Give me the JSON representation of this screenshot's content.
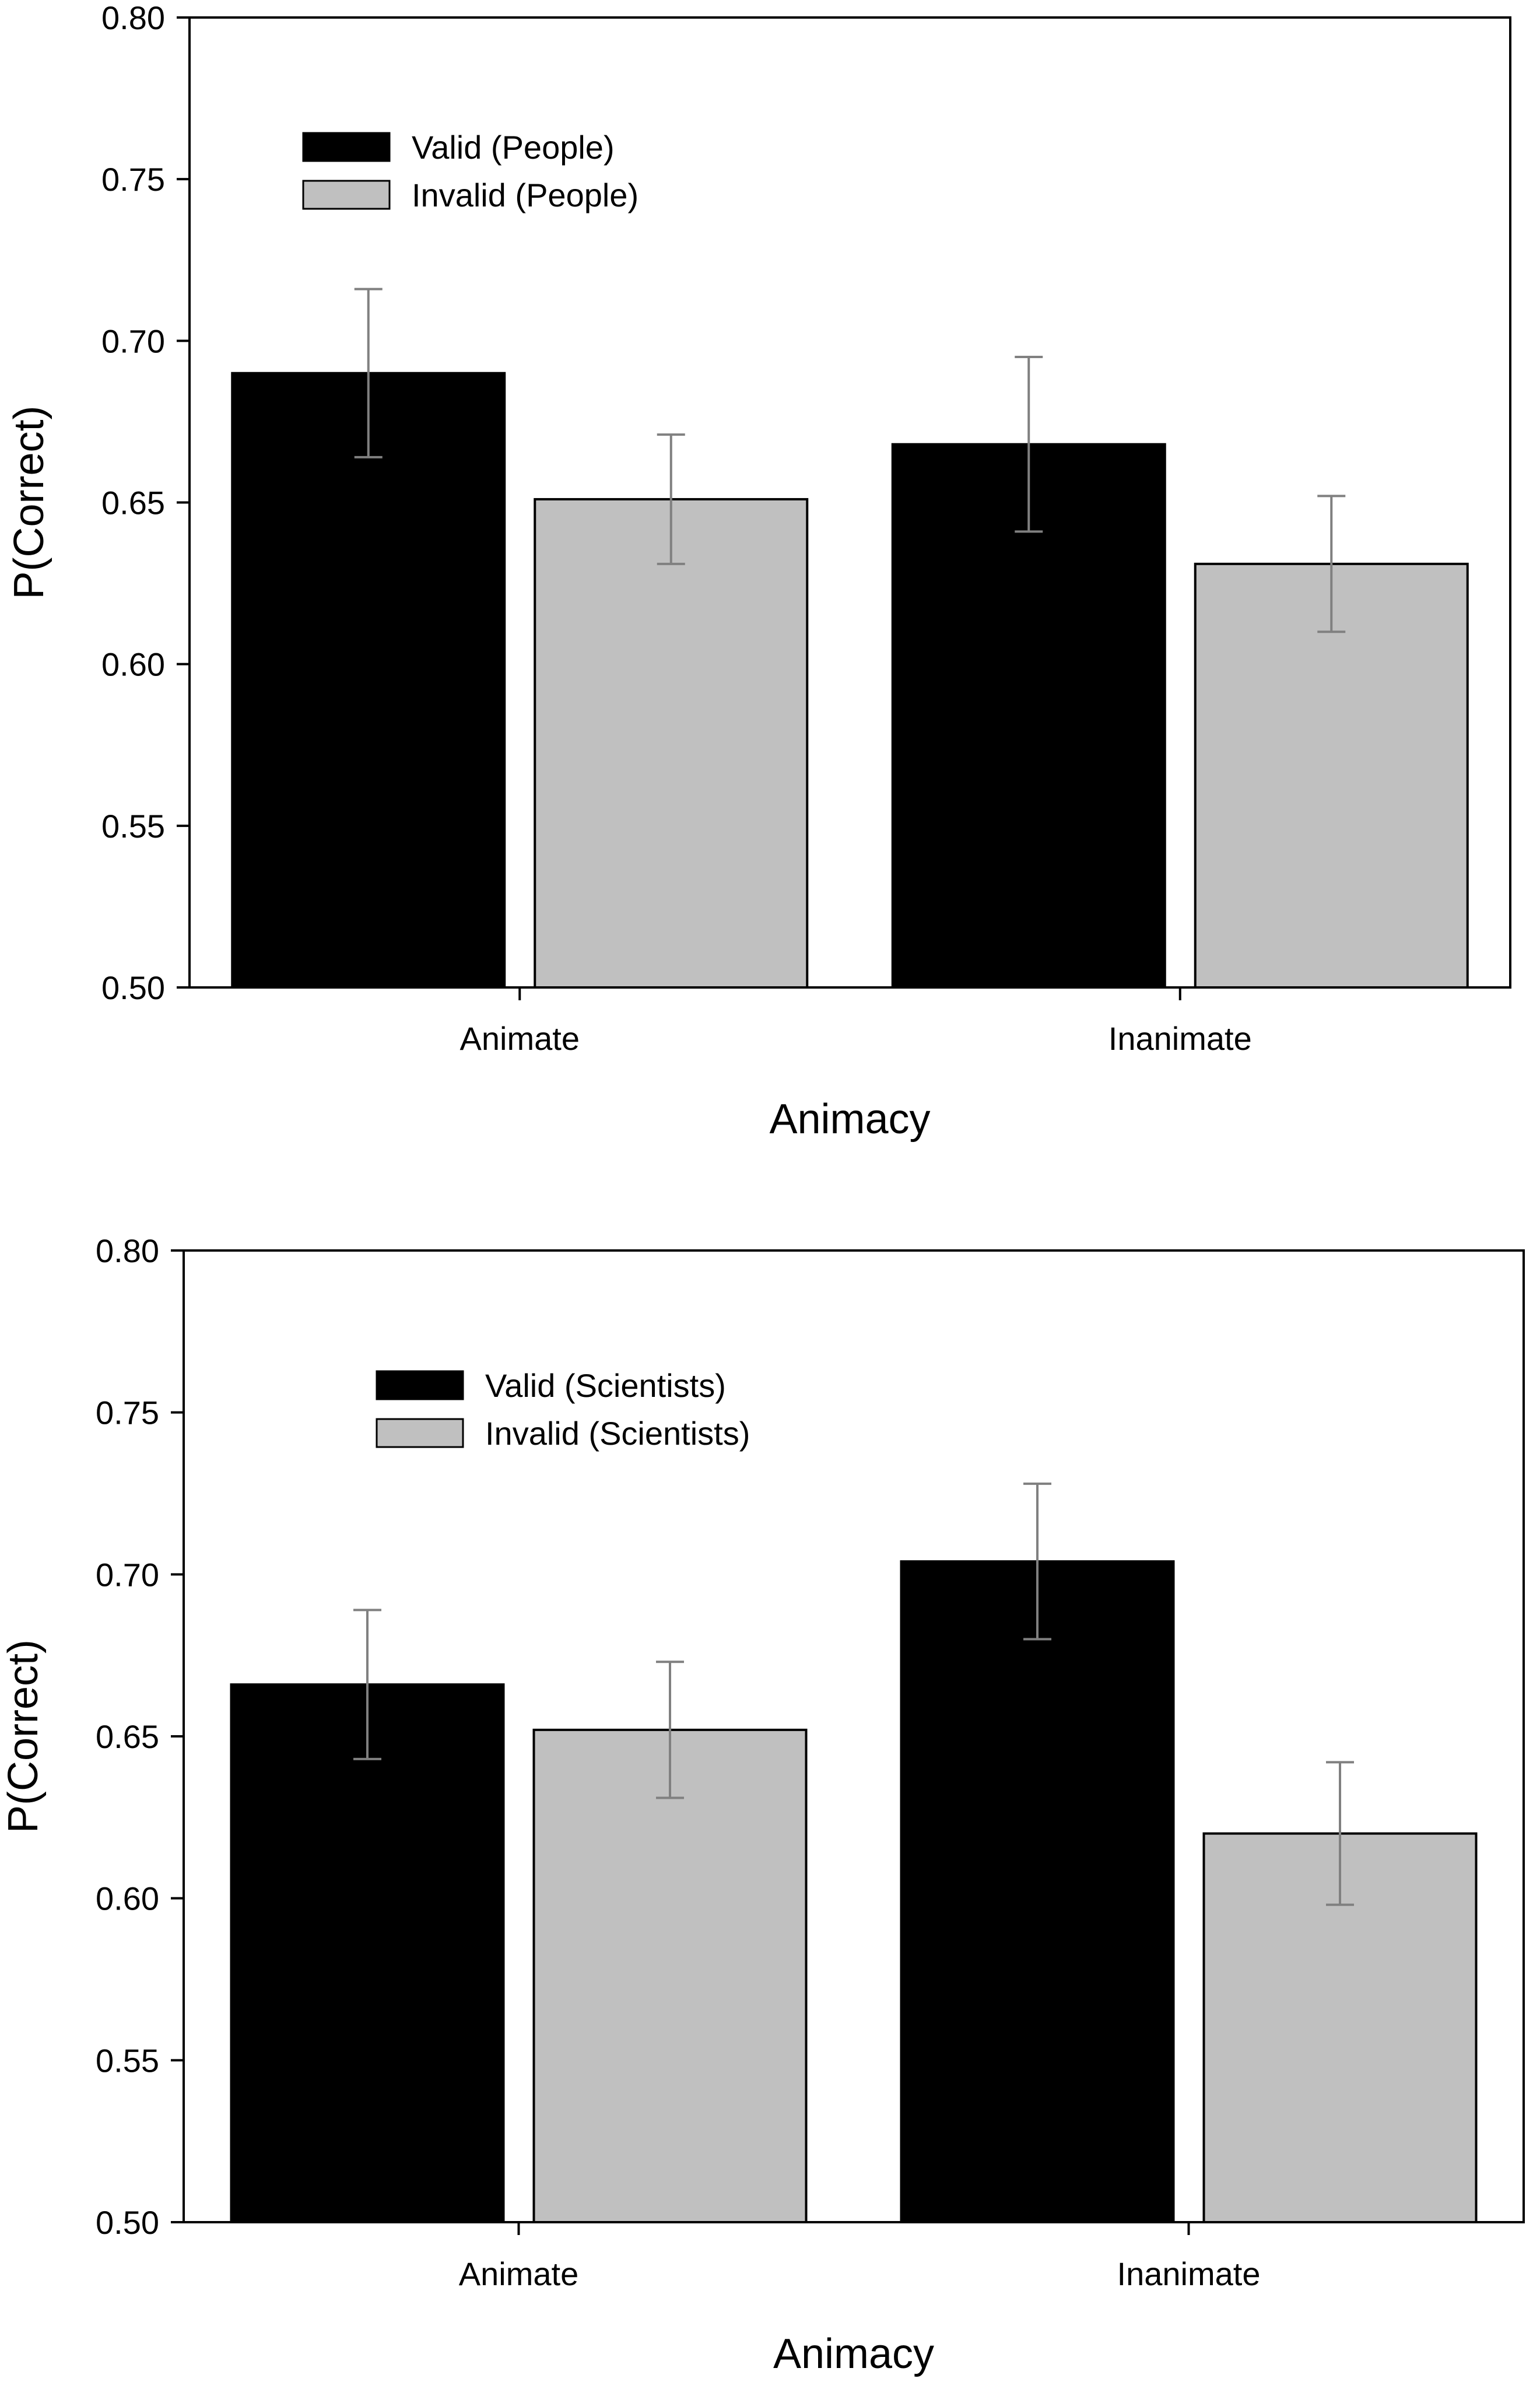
{
  "chart_data": [
    {
      "type": "bar",
      "categories": [
        "Animate",
        "Inanimate"
      ],
      "series": [
        {
          "name": "Valid (People)",
          "color": "#000000",
          "values": [
            0.69,
            0.668
          ],
          "error": [
            0.026,
            0.027
          ]
        },
        {
          "name": "Invalid (People)",
          "color": "#c0c0c0",
          "values": [
            0.651,
            0.631
          ],
          "error": [
            0.02,
            0.021
          ]
        }
      ],
      "xlabel": "Animacy",
      "ylabel": "P(Correct)",
      "ylim": [
        0.5,
        0.8
      ],
      "yticks": [
        "0.50",
        "0.55",
        "0.60",
        "0.65",
        "0.70",
        "0.75",
        "0.80"
      ],
      "legend_position": "top-left"
    },
    {
      "type": "bar",
      "categories": [
        "Animate",
        "Inanimate"
      ],
      "series": [
        {
          "name": "Valid (Scientists)",
          "color": "#000000",
          "values": [
            0.666,
            0.704
          ],
          "error": [
            0.023,
            0.024
          ]
        },
        {
          "name": "Invalid (Scientists)",
          "color": "#c0c0c0",
          "values": [
            0.652,
            0.62
          ],
          "error": [
            0.021,
            0.022
          ]
        }
      ],
      "xlabel": "Animacy",
      "ylabel": "P(Correct)",
      "ylim": [
        0.5,
        0.8
      ],
      "yticks": [
        "0.50",
        "0.55",
        "0.60",
        "0.65",
        "0.70",
        "0.75",
        "0.80"
      ],
      "legend_position": "top-left"
    }
  ]
}
